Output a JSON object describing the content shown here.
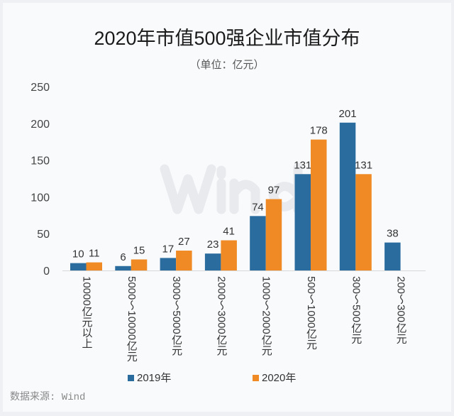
{
  "chart_data": {
    "type": "bar",
    "title": "2020年市值500强企业市值分布",
    "subtitle": "（单位：亿元）",
    "categories": [
      "10000亿元以上",
      "5000～10000亿元",
      "3000～5000亿元",
      "2000～3000亿元",
      "1000～2000亿元",
      "500～1000亿元",
      "300～500亿元",
      "200～300亿元"
    ],
    "series": [
      {
        "name": "2019年",
        "color": "#2a6c9e",
        "values": [
          10,
          6,
          17,
          23,
          74,
          131,
          201,
          38
        ]
      },
      {
        "name": "2020年",
        "color": "#f08a24",
        "values": [
          11,
          15,
          27,
          41,
          97,
          178,
          131,
          null
        ]
      }
    ],
    "ylim": [
      0,
      250
    ],
    "yticks": [
      0,
      50,
      100,
      150,
      200,
      250
    ],
    "grid": false,
    "legend": "bottom",
    "watermark": "Wind"
  },
  "source": "数据来源: Wind"
}
